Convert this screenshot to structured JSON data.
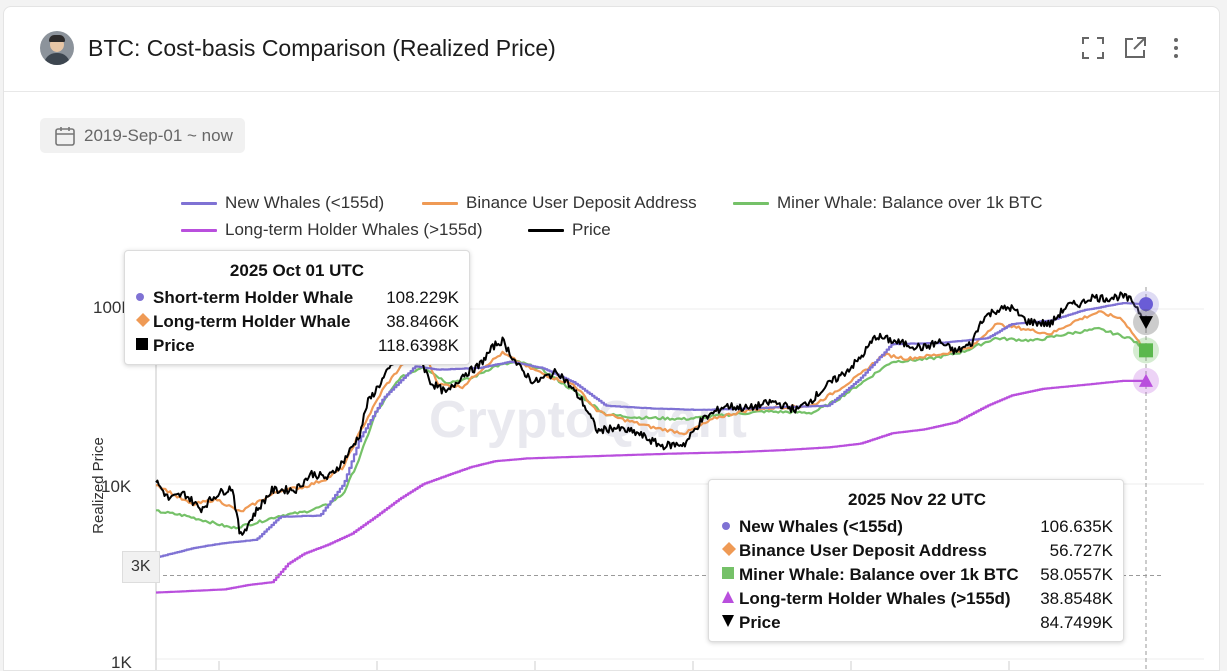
{
  "header": {
    "title": "BTC: Cost-basis Comparison (Realized Price)",
    "icons": [
      "fullscreen-icon",
      "external-link-icon",
      "more-vert-icon"
    ]
  },
  "date_range": {
    "label": "2019-Sep-01 ~ now"
  },
  "colors": {
    "new_whales": "#7f72d4",
    "binance": "#ef9a55",
    "miner": "#75c168",
    "lth": "#b94fdd",
    "price": "#000000"
  },
  "chart_data": {
    "type": "line",
    "y_scale": "log",
    "ylabel": "Realized Price",
    "ylim": [
      1000,
      160000
    ],
    "y_ticks": [
      {
        "value": 1000,
        "label": "1K"
      },
      {
        "value": 10000,
        "label": "10K"
      },
      {
        "value": 100000,
        "label": "100K"
      }
    ],
    "x_range": [
      "2019-09-01",
      "2025-11-22"
    ],
    "legend": [
      "New Whales (<155d)",
      "Binance User Deposit Address",
      "Miner Whale: Balance over 1k BTC",
      "Long-term Holder Whales (>155d)",
      "Price"
    ],
    "series": [
      {
        "name": "New Whales (<155d)",
        "key": "new_whales",
        "points": [
          [
            2019.67,
            3800
          ],
          [
            2019.9,
            4300
          ],
          [
            2020.1,
            4600
          ],
          [
            2020.3,
            4800
          ],
          [
            2020.45,
            6500
          ],
          [
            2020.7,
            6600
          ],
          [
            2020.85,
            10000
          ],
          [
            2020.95,
            18000
          ],
          [
            2021.1,
            31000
          ],
          [
            2021.3,
            47000
          ],
          [
            2021.45,
            45000
          ],
          [
            2021.7,
            46000
          ],
          [
            2021.9,
            50000
          ],
          [
            2022.1,
            46000
          ],
          [
            2022.3,
            38000
          ],
          [
            2022.5,
            28000
          ],
          [
            2022.8,
            27000
          ],
          [
            2023.1,
            26500
          ],
          [
            2023.4,
            27000
          ],
          [
            2023.6,
            27500
          ],
          [
            2023.9,
            28000
          ],
          [
            2024.1,
            40000
          ],
          [
            2024.3,
            63000
          ],
          [
            2024.6,
            64000
          ],
          [
            2024.9,
            68000
          ],
          [
            2025.05,
            82000
          ],
          [
            2025.3,
            86000
          ],
          [
            2025.5,
            98000
          ],
          [
            2025.75,
            108229
          ],
          [
            2025.9,
            106635
          ]
        ]
      },
      {
        "name": "Binance User Deposit Address",
        "key": "binance",
        "points": [
          [
            2019.67,
            10000
          ],
          [
            2019.8,
            8500
          ],
          [
            2019.9,
            7600
          ],
          [
            2020.05,
            8200
          ],
          [
            2020.2,
            6900
          ],
          [
            2020.3,
            7800
          ],
          [
            2020.45,
            9200
          ],
          [
            2020.6,
            9600
          ],
          [
            2020.75,
            10800
          ],
          [
            2020.85,
            12500
          ],
          [
            2020.95,
            19500
          ],
          [
            2021.1,
            35000
          ],
          [
            2021.25,
            52000
          ],
          [
            2021.35,
            57000
          ],
          [
            2021.45,
            37000
          ],
          [
            2021.6,
            36000
          ],
          [
            2021.75,
            48000
          ],
          [
            2021.85,
            56000
          ],
          [
            2022.0,
            47000
          ],
          [
            2022.15,
            41000
          ],
          [
            2022.3,
            37000
          ],
          [
            2022.45,
            26000
          ],
          [
            2022.6,
            23500
          ],
          [
            2022.8,
            21000
          ],
          [
            2023.0,
            19500
          ],
          [
            2023.2,
            24000
          ],
          [
            2023.4,
            26500
          ],
          [
            2023.6,
            27500
          ],
          [
            2023.8,
            28000
          ],
          [
            2023.95,
            34000
          ],
          [
            2024.1,
            42000
          ],
          [
            2024.25,
            55000
          ],
          [
            2024.4,
            52000
          ],
          [
            2024.6,
            55000
          ],
          [
            2024.8,
            60000
          ],
          [
            2024.95,
            82000
          ],
          [
            2025.1,
            78000
          ],
          [
            2025.3,
            72000
          ],
          [
            2025.45,
            85000
          ],
          [
            2025.6,
            96000
          ],
          [
            2025.75,
            88000
          ],
          [
            2025.9,
            56727
          ]
        ]
      },
      {
        "name": "Miner Whale: Balance over 1k BTC",
        "key": "miner",
        "points": [
          [
            2019.67,
            7000
          ],
          [
            2019.85,
            6600
          ],
          [
            2020.0,
            6100
          ],
          [
            2020.15,
            5600
          ],
          [
            2020.3,
            6000
          ],
          [
            2020.45,
            6600
          ],
          [
            2020.6,
            6900
          ],
          [
            2020.75,
            7600
          ],
          [
            2020.85,
            8800
          ],
          [
            2020.95,
            14000
          ],
          [
            2021.05,
            25000
          ],
          [
            2021.2,
            40000
          ],
          [
            2021.35,
            47000
          ],
          [
            2021.5,
            38000
          ],
          [
            2021.65,
            40000
          ],
          [
            2021.8,
            47000
          ],
          [
            2021.95,
            50000
          ],
          [
            2022.1,
            45000
          ],
          [
            2022.3,
            34000
          ],
          [
            2022.5,
            25000
          ],
          [
            2022.7,
            24000
          ],
          [
            2023.0,
            23500
          ],
          [
            2023.2,
            24500
          ],
          [
            2023.5,
            26000
          ],
          [
            2023.8,
            25500
          ],
          [
            2023.95,
            30000
          ],
          [
            2024.15,
            40000
          ],
          [
            2024.3,
            50000
          ],
          [
            2024.55,
            52000
          ],
          [
            2024.75,
            57000
          ],
          [
            2024.95,
            68000
          ],
          [
            2025.2,
            66000
          ],
          [
            2025.4,
            72000
          ],
          [
            2025.6,
            77000
          ],
          [
            2025.8,
            68000
          ],
          [
            2025.9,
            58055.7
          ]
        ]
      },
      {
        "name": "Long-term Holder Whales (>155d)",
        "key": "lth",
        "points": [
          [
            2019.67,
            2400
          ],
          [
            2019.9,
            2450
          ],
          [
            2020.1,
            2500
          ],
          [
            2020.25,
            2650
          ],
          [
            2020.4,
            2750
          ],
          [
            2020.5,
            3500
          ],
          [
            2020.6,
            4000
          ],
          [
            2020.75,
            4500
          ],
          [
            2020.9,
            5200
          ],
          [
            2021.05,
            6500
          ],
          [
            2021.2,
            8200
          ],
          [
            2021.35,
            10000
          ],
          [
            2021.5,
            11200
          ],
          [
            2021.65,
            12500
          ],
          [
            2021.8,
            13500
          ],
          [
            2022.0,
            14000
          ],
          [
            2022.3,
            14300
          ],
          [
            2022.6,
            14600
          ],
          [
            2022.9,
            14900
          ],
          [
            2023.3,
            15200
          ],
          [
            2023.6,
            15600
          ],
          [
            2023.9,
            16200
          ],
          [
            2024.1,
            17000
          ],
          [
            2024.3,
            19500
          ],
          [
            2024.5,
            20500
          ],
          [
            2024.7,
            22500
          ],
          [
            2024.9,
            28000
          ],
          [
            2025.05,
            32000
          ],
          [
            2025.25,
            35000
          ],
          [
            2025.5,
            36800
          ],
          [
            2025.75,
            38846.6
          ],
          [
            2025.9,
            38854.8
          ]
        ]
      },
      {
        "name": "Price",
        "key": "price",
        "points": [
          [
            2019.67,
            10400
          ],
          [
            2019.75,
            8200
          ],
          [
            2019.85,
            8800
          ],
          [
            2019.95,
            7200
          ],
          [
            2020.05,
            8700
          ],
          [
            2020.15,
            9600
          ],
          [
            2020.2,
            5000
          ],
          [
            2020.3,
            7000
          ],
          [
            2020.4,
            9200
          ],
          [
            2020.55,
            9300
          ],
          [
            2020.65,
            11500
          ],
          [
            2020.75,
            10800
          ],
          [
            2020.85,
            13500
          ],
          [
            2020.95,
            19000
          ],
          [
            2021.0,
            29000
          ],
          [
            2021.1,
            40000
          ],
          [
            2021.2,
            55000
          ],
          [
            2021.3,
            60000
          ],
          [
            2021.4,
            38000
          ],
          [
            2021.5,
            33000
          ],
          [
            2021.6,
            42000
          ],
          [
            2021.7,
            47000
          ],
          [
            2021.8,
            62000
          ],
          [
            2021.85,
            66000
          ],
          [
            2021.95,
            47000
          ],
          [
            2022.05,
            38000
          ],
          [
            2022.2,
            44000
          ],
          [
            2022.35,
            30000
          ],
          [
            2022.45,
            20000
          ],
          [
            2022.55,
            21000
          ],
          [
            2022.7,
            19500
          ],
          [
            2022.85,
            16500
          ],
          [
            2023.0,
            17000
          ],
          [
            2023.1,
            23000
          ],
          [
            2023.25,
            28000
          ],
          [
            2023.4,
            27000
          ],
          [
            2023.55,
            29500
          ],
          [
            2023.7,
            26500
          ],
          [
            2023.8,
            30500
          ],
          [
            2023.9,
            37000
          ],
          [
            2024.0,
            43000
          ],
          [
            2024.1,
            52000
          ],
          [
            2024.2,
            70000
          ],
          [
            2024.35,
            64000
          ],
          [
            2024.5,
            60000
          ],
          [
            2024.6,
            65000
          ],
          [
            2024.7,
            57000
          ],
          [
            2024.8,
            63000
          ],
          [
            2024.87,
            88000
          ],
          [
            2024.95,
            98000
          ],
          [
            2025.05,
            102000
          ],
          [
            2025.15,
            85000
          ],
          [
            2025.3,
            82000
          ],
          [
            2025.4,
            104000
          ],
          [
            2025.5,
            108000
          ],
          [
            2025.55,
            117000
          ],
          [
            2025.65,
            115000
          ],
          [
            2025.75,
            118639.8
          ],
          [
            2025.82,
            110000
          ],
          [
            2025.9,
            84749.9
          ]
        ]
      }
    ],
    "tooltip_top": {
      "title": "2025 Oct 01 UTC",
      "rows": [
        {
          "marker": "dot",
          "color_key": "new_whales",
          "label": "Short-term Holder Whale",
          "value": "108.229K"
        },
        {
          "marker": "diamond",
          "color_key": "binance",
          "label": "Long-term Holder Whale",
          "value": "38.8466K"
        },
        {
          "marker": "square",
          "color_key": "price",
          "label": "Price",
          "value": "118.6398K"
        }
      ]
    },
    "tooltip_bottom": {
      "title": "2025 Nov 22 UTC",
      "rows": [
        {
          "marker": "dot",
          "color_key": "new_whales",
          "label": "New Whales (<155d)",
          "value": "106.635K"
        },
        {
          "marker": "diamond",
          "color_key": "binance",
          "label": "Binance User Deposit Address",
          "value": "56.727K"
        },
        {
          "marker": "square",
          "color_key": "miner",
          "label": "Miner Whale: Balance over 1k BTC",
          "value": "58.0557K"
        },
        {
          "marker": "triangle-up",
          "color_key": "lth",
          "label": "Long-term Holder Whales (>155d)",
          "value": "38.8548K"
        },
        {
          "marker": "triangle-down",
          "color_key": "price",
          "label": "Price",
          "value": "84.7499K"
        }
      ]
    },
    "crosshair": {
      "value": 3000,
      "label": "3K",
      "date": "2025-11-22"
    },
    "watermark": "CryptoQuant"
  }
}
